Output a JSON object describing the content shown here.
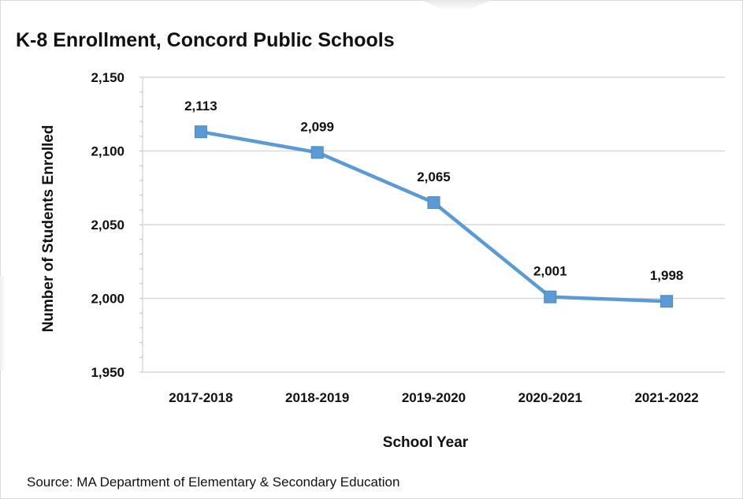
{
  "chart_data": {
    "type": "line",
    "title": "K-8 Enrollment, Concord Public Schools",
    "xlabel": "School Year",
    "ylabel": "Number of Students Enrolled",
    "categories": [
      "2017-2018",
      "2018-2019",
      "2019-2020",
      "2020-2021",
      "2021-2022"
    ],
    "series": [
      {
        "values": [
          2113,
          2099,
          2065,
          2001,
          1998
        ]
      }
    ],
    "data_labels": [
      "2,113",
      "2,099",
      "2,065",
      "2,001",
      "1,998"
    ],
    "ylim": [
      1950,
      2150
    ],
    "yticks": [
      2150,
      2100,
      2050,
      2000,
      1950
    ],
    "ytick_labels": [
      "2,150",
      "2,100",
      "2,050",
      "2,000",
      "1,950"
    ],
    "grid": true,
    "marker": "square",
    "line_color": "#5b9bd5",
    "marker_color": "#5b9bd5",
    "grid_color": "#d9d9d9",
    "source": "Source: MA Department of Elementary & Secondary Education"
  }
}
